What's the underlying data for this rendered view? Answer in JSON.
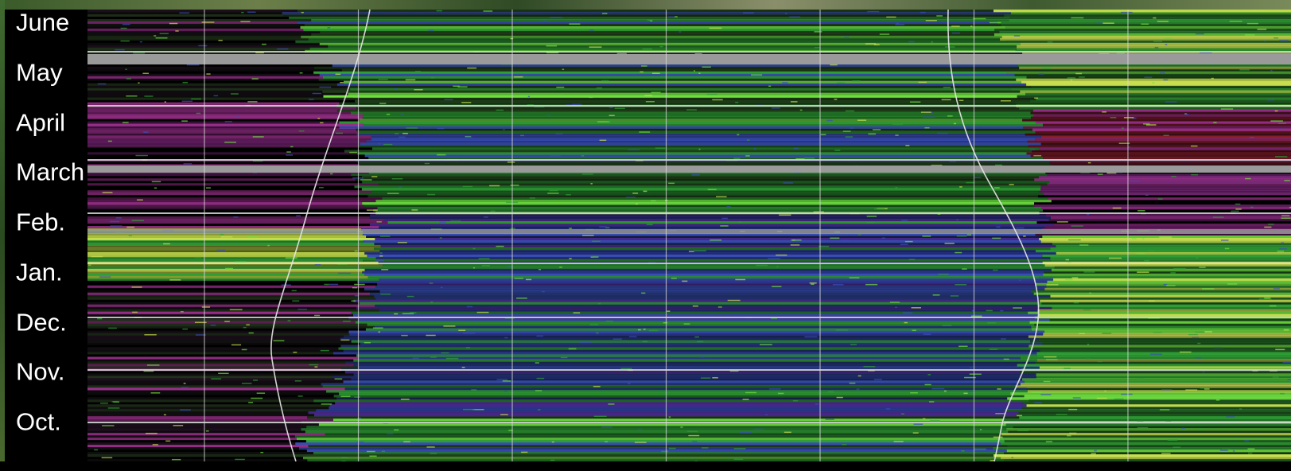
{
  "chart_data": {
    "type": "heatmap",
    "title": "",
    "xlabel": "",
    "ylabel": "",
    "y_tick_labels": [
      "June",
      "May",
      "April",
      "March",
      "Feb.",
      "Jan.",
      "Dec.",
      "Nov.",
      "Oct."
    ],
    "grid": true,
    "vertical_gridline_count": 7,
    "colors": {
      "background": "#000000",
      "green": "#2f9e35",
      "bright_green": "#6fe040",
      "blue": "#3a4fb8",
      "magenta": "#9a2f8a",
      "red": "#8a1f2a",
      "yellow_green": "#c8e050",
      "gray_band": "#9a9a9a",
      "gridline": "#dcdcdc",
      "curve": "#e8e8e8"
    }
  }
}
